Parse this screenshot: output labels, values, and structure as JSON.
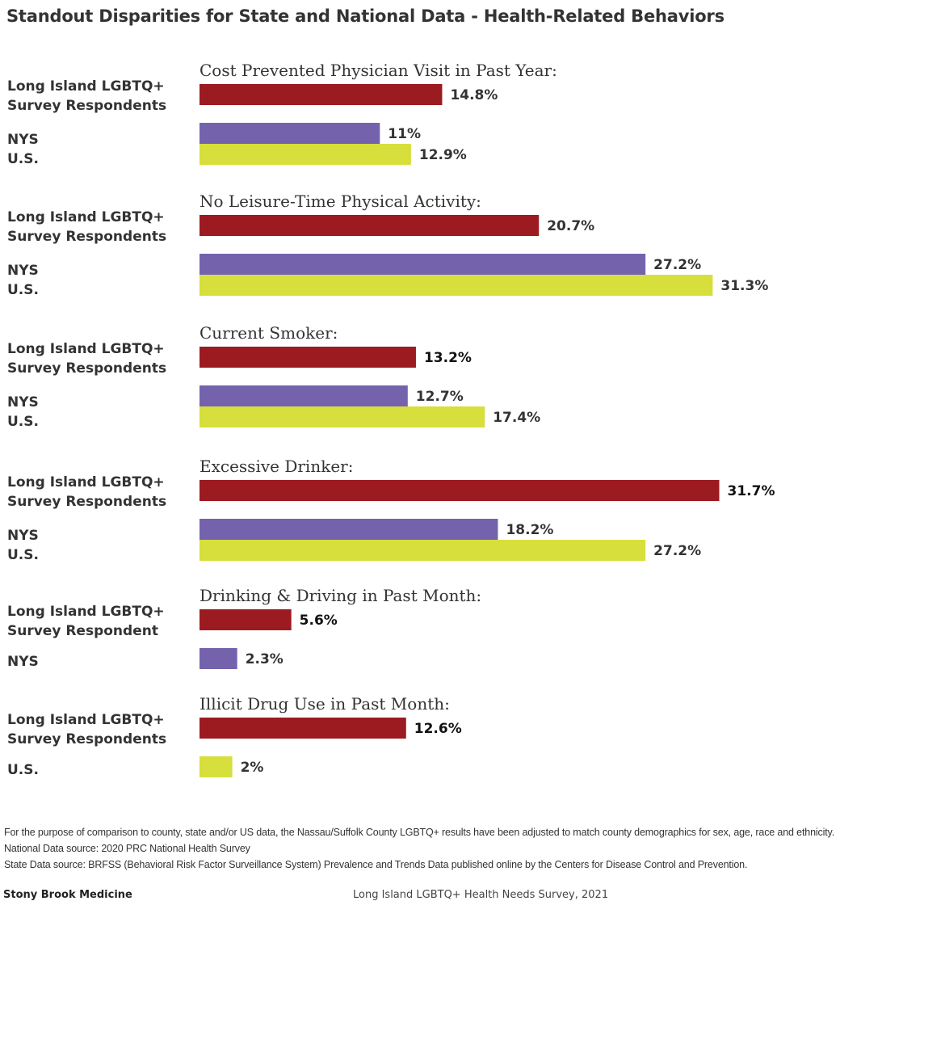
{
  "title": "Standout Disparities for State and National Data - Health-Related Behaviors",
  "colors": {
    "long_island": "#9b1b20",
    "nys": "#7463ac",
    "us": "#d6df3b",
    "brand": "#9b1b20"
  },
  "chart_data": {
    "type": "bar",
    "orientation": "horizontal",
    "unit": "%",
    "panels": [
      {
        "title": "Cost Prevented Physician Visit in Past Year:",
        "series": [
          {
            "name": "Long Island LGBTQ+ Survey Respondents",
            "label_lines": [
              "Long Island LGBTQ+",
              "Survey Respondents"
            ],
            "key": "long_island",
            "value": 14.8,
            "value_label": "14.8%"
          },
          {
            "name": "NYS",
            "label_lines": [
              "NYS"
            ],
            "key": "nys",
            "value": 11,
            "value_label": "11%"
          },
          {
            "name": "U.S.",
            "label_lines": [
              "U.S."
            ],
            "key": "us",
            "value": 12.9,
            "value_label": "12.9%"
          }
        ]
      },
      {
        "title": "No Leisure-Time Physical Activity:",
        "series": [
          {
            "name": "Long Island LGBTQ+ Survey Respondents",
            "label_lines": [
              "Long Island LGBTQ+",
              "Survey Respondents"
            ],
            "key": "long_island",
            "value": 20.7,
            "value_label": "20.7%"
          },
          {
            "name": "NYS",
            "label_lines": [
              "NYS"
            ],
            "key": "nys",
            "value": 27.2,
            "value_label": "27.2%"
          },
          {
            "name": "U.S.",
            "label_lines": [
              "U.S."
            ],
            "key": "us",
            "value": 31.3,
            "value_label": "31.3%"
          }
        ]
      },
      {
        "title": "Current Smoker:",
        "series": [
          {
            "name": "Long Island LGBTQ+ Survey Respondents",
            "label_lines": [
              "Long Island LGBTQ+",
              "Survey Respondents"
            ],
            "key": "long_island",
            "value": 13.2,
            "value_label": "13.2%"
          },
          {
            "name": "NYS",
            "label_lines": [
              "NYS"
            ],
            "key": "nys",
            "value": 12.7,
            "value_label": "12.7%"
          },
          {
            "name": "U.S.",
            "label_lines": [
              "U.S."
            ],
            "key": "us",
            "value": 17.4,
            "value_label": "17.4%"
          }
        ]
      },
      {
        "title": "Excessive Drinker:",
        "series": [
          {
            "name": "Long Island LGBTQ+ Survey Respondents",
            "label_lines": [
              "Long Island LGBTQ+",
              "Survey Respondents"
            ],
            "key": "long_island",
            "value": 31.7,
            "value_label": "31.7%"
          },
          {
            "name": "NYS",
            "label_lines": [
              "NYS"
            ],
            "key": "nys",
            "value": 18.2,
            "value_label": "18.2%"
          },
          {
            "name": "U.S.",
            "label_lines": [
              "U.S."
            ],
            "key": "us",
            "value": 27.2,
            "value_label": "27.2%"
          }
        ]
      },
      {
        "title": "Drinking & Driving in Past Month:",
        "series": [
          {
            "name": "Long Island LGBTQ+ Survey Respondent",
            "label_lines": [
              "Long Island LGBTQ+",
              "Survey Respondent"
            ],
            "key": "long_island",
            "value": 5.6,
            "value_label": "5.6%"
          },
          {
            "name": "NYS",
            "label_lines": [
              "NYS"
            ],
            "key": "nys",
            "value": 2.3,
            "value_label": "2.3%"
          }
        ]
      },
      {
        "title": "Illicit Drug Use in Past Month:",
        "series": [
          {
            "name": "Long Island LGBTQ+ Survey Respondents",
            "label_lines": [
              "Long Island LGBTQ+",
              "Survey Respondents"
            ],
            "key": "long_island",
            "value": 12.6,
            "value_label": "12.6%"
          },
          {
            "name": "U.S.",
            "label_lines": [
              "U.S."
            ],
            "key": "us",
            "value": 2,
            "value_label": "2%"
          }
        ]
      }
    ]
  },
  "notes": [
    "For the purpose of comparison to county, state and/or US data, the Nassau/Suffolk County LGBTQ+ results have been adjusted to match county demographics for sex, age, race and ethnicity.",
    "National Data source: 2020 PRC National Health Survey",
    "State Data source: BRFSS (Behavioral Risk Factor Surveillance System) Prevalence and Trends Data published online by the Centers for Disease Control and Prevention."
  ],
  "footer": {
    "brand": "Stony Brook Medicine",
    "survey": "Long Island LGBTQ+ Health Needs Survey, 2021"
  }
}
